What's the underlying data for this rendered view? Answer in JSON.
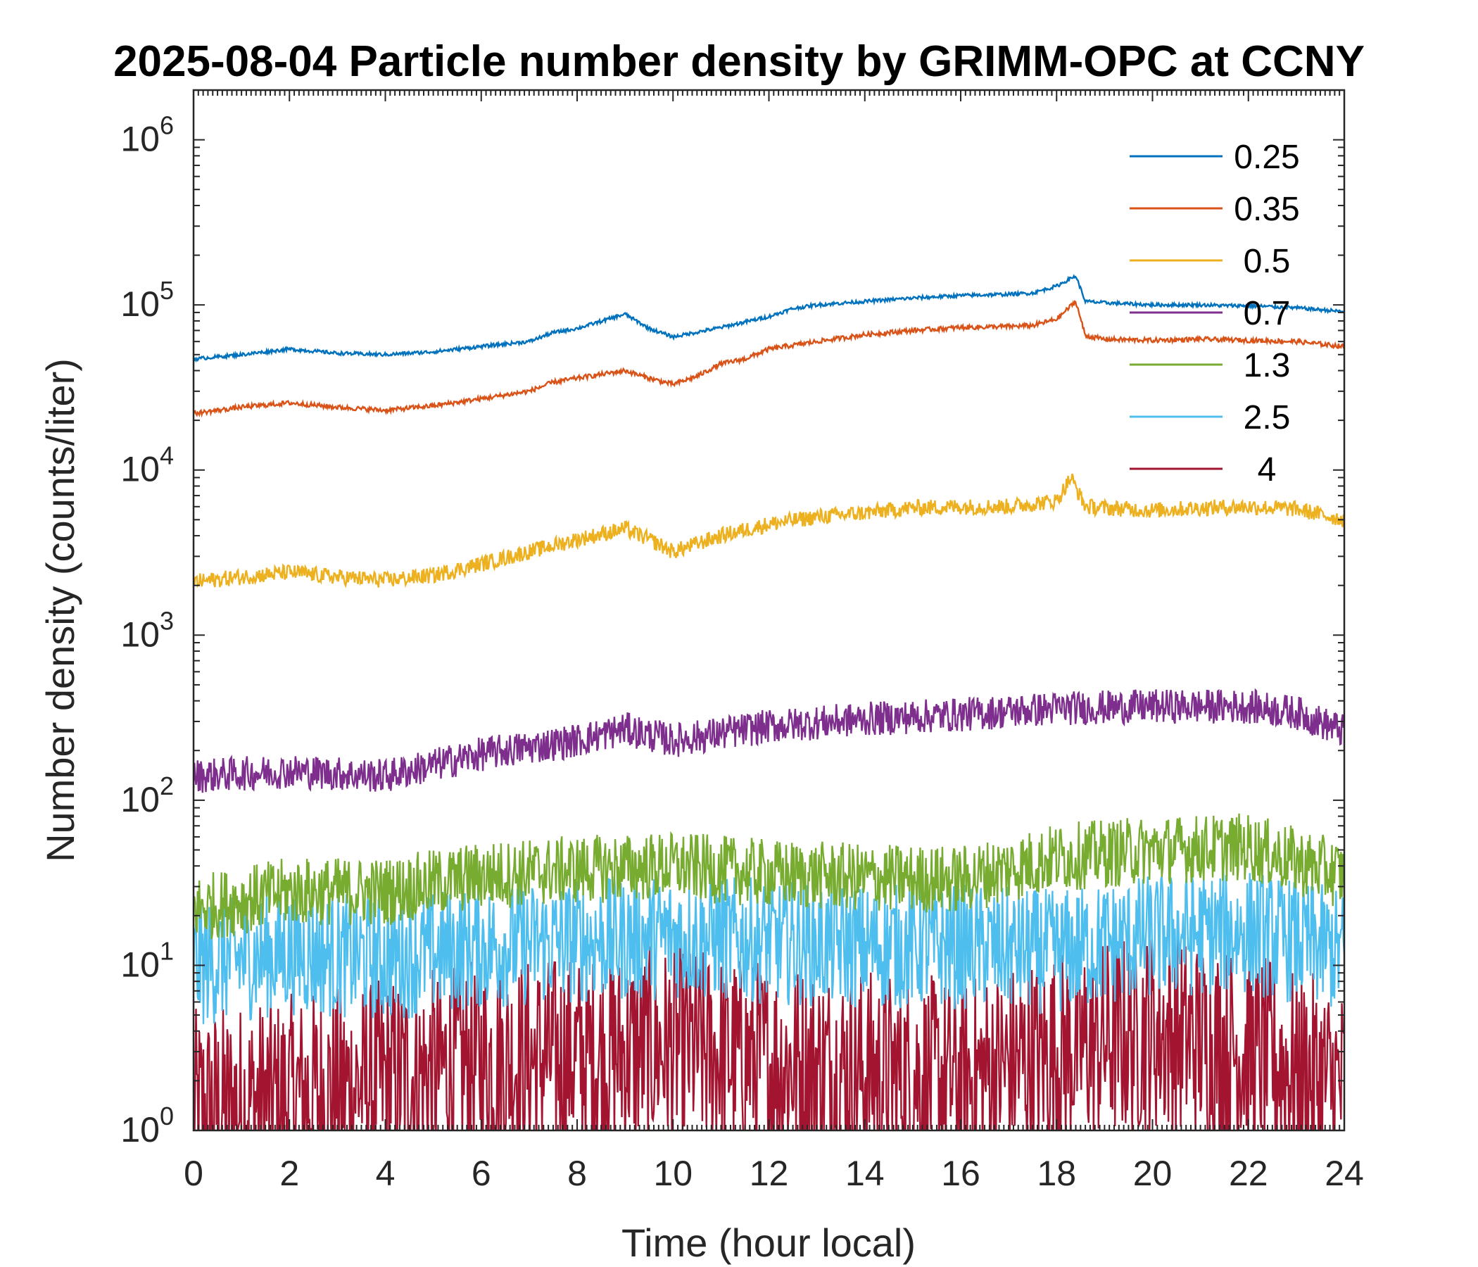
{
  "chart_data": {
    "type": "line",
    "title": "2025-08-04 Particle number density by GRIMM-OPC at CCNY",
    "xlabel": "Time (hour local)",
    "ylabel": "Number density (counts/liter)",
    "xlim": [
      0,
      24
    ],
    "ylim": [
      1,
      2000000
    ],
    "yscale": "log",
    "x_ticks": [
      0,
      2,
      4,
      6,
      8,
      10,
      12,
      14,
      16,
      18,
      20,
      22,
      24
    ],
    "y_tick_base": "10",
    "y_ticks": [
      {
        "value": 1,
        "exponent": "0"
      },
      {
        "value": 10,
        "exponent": "1"
      },
      {
        "value": 100,
        "exponent": "2"
      },
      {
        "value": 1000,
        "exponent": "3"
      },
      {
        "value": 10000,
        "exponent": "4"
      },
      {
        "value": 100000,
        "exponent": "5"
      },
      {
        "value": 1000000,
        "exponent": "6"
      }
    ],
    "legend_position": "top-right",
    "series": [
      {
        "name": "0.25",
        "color": "#0072BD",
        "noise": 0.015,
        "x": [
          0,
          1,
          2,
          3,
          4,
          5,
          6,
          7,
          7.5,
          8,
          9,
          9.5,
          10,
          11,
          12,
          12.5,
          13,
          14,
          15,
          16,
          17,
          17.5,
          18,
          18.4,
          18.6,
          19,
          20,
          21,
          21.5,
          22,
          23,
          24
        ],
        "y": [
          47000,
          50000,
          54000,
          51000,
          50000,
          52000,
          56000,
          60000,
          68000,
          72000,
          88000,
          72000,
          64000,
          73000,
          85000,
          95000,
          100000,
          105000,
          110000,
          114000,
          116000,
          118000,
          130000,
          150000,
          105000,
          103000,
          100000,
          100000,
          99000,
          99000,
          96000,
          91000
        ]
      },
      {
        "name": "0.35",
        "color": "#D95319",
        "noise": 0.02,
        "x": [
          0,
          1,
          2,
          3,
          4,
          5,
          6,
          7,
          7.5,
          8,
          9,
          9.5,
          10,
          10.5,
          11,
          11.5,
          12,
          13,
          14,
          15,
          16,
          17,
          17.5,
          18,
          18.4,
          18.6,
          19,
          20,
          21,
          22,
          23,
          24
        ],
        "y": [
          22000,
          24000,
          25500,
          24000,
          23000,
          24500,
          27000,
          30000,
          34000,
          36000,
          40000,
          36000,
          33000,
          37000,
          44000,
          47000,
          54000,
          60000,
          66000,
          70000,
          73000,
          74000,
          75000,
          82000,
          105000,
          65000,
          62000,
          61000,
          62000,
          61000,
          60000,
          56000
        ]
      },
      {
        "name": "0.5",
        "color": "#EDB120",
        "noise": 0.07,
        "x": [
          0,
          1,
          2,
          3,
          4,
          5,
          6,
          7,
          8,
          9,
          9.5,
          10,
          11,
          12,
          13,
          14,
          15,
          16,
          17,
          18,
          18.3,
          18.6,
          19,
          20,
          21,
          22,
          23,
          24
        ],
        "y": [
          2100,
          2250,
          2400,
          2250,
          2150,
          2300,
          2700,
          3200,
          3800,
          4400,
          3800,
          3200,
          4000,
          4700,
          5200,
          5500,
          5900,
          6000,
          6000,
          6500,
          9000,
          6000,
          5900,
          5700,
          5900,
          6000,
          5800,
          5000
        ]
      },
      {
        "name": "0.7",
        "color": "#7E2F8E",
        "noise": 0.15,
        "x": [
          0,
          2,
          4,
          6,
          8,
          9,
          10,
          12,
          14,
          16,
          18,
          20,
          22,
          23,
          24
        ],
        "y": [
          140,
          150,
          140,
          190,
          230,
          270,
          230,
          280,
          310,
          330,
          360,
          370,
          370,
          340,
          260
        ]
      },
      {
        "name": "1.3",
        "color": "#77AC30",
        "noise": 0.3,
        "x": [
          0,
          2,
          4,
          6,
          8,
          10,
          12,
          14,
          16,
          18,
          20,
          22,
          24
        ],
        "y": [
          22,
          28,
          28,
          35,
          38,
          40,
          36,
          34,
          33,
          45,
          50,
          52,
          35
        ]
      },
      {
        "name": "2.5",
        "color": "#4DBEEE",
        "noise": 0.55,
        "x": [
          0,
          2,
          4,
          6,
          8,
          10,
          12,
          14,
          16,
          18,
          20,
          22,
          24
        ],
        "y": [
          10,
          12,
          11,
          13,
          14,
          15,
          14,
          13,
          13,
          12,
          15,
          16,
          12
        ]
      },
      {
        "name": "4",
        "color": "#A2142F",
        "noise": 0.9,
        "x": [
          0,
          2,
          4,
          6,
          8,
          10,
          12,
          14,
          16,
          18,
          20,
          22,
          24
        ],
        "y": [
          1.3,
          1.6,
          2.0,
          2.6,
          2.8,
          3.2,
          2.6,
          2.3,
          2.0,
          3.0,
          4.0,
          3.0,
          1.8
        ]
      }
    ]
  }
}
